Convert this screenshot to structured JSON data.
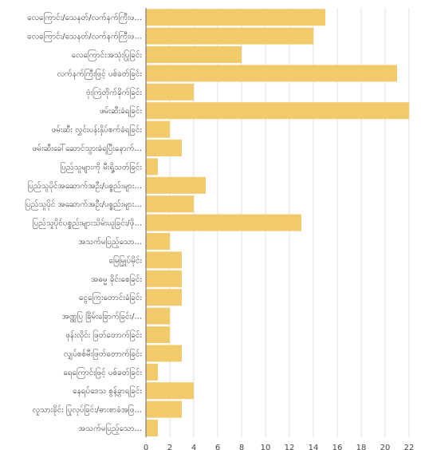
{
  "chart_data": {
    "type": "bar",
    "orientation": "horizontal",
    "categories": [
      "လေကြောင်း/သေနတ်/လက်နက်ကြီးဖ...",
      "လေကြောင်း/သေနတ်/လက်နက်ကြီးဖ...",
      "လေကြောင်းအသုံးပြုခြင်း",
      "လက်နက်ကြီးဖြင့် ပစ်ခတ်ခြင်း",
      "ဗုံးကြဲတိုက်ခိုက်ခြင်း",
      "ဖမ်းဆီးခံရခြင်း",
      "ဖမ်းဆီး လွှင်းပန်းနှိပ်စက်ခံရခြင်း",
      "ဖမ်းဆီးခေါ်ဆောင်သွားခံရပြီးနောက်...",
      "ပြည်သူများကို မီးရှို့သတ်ခြင်း",
      "ပြည်သူပိုင်အဆောက်အဦး/ပစ္စည်းများ...",
      "ပြည်သူပိုင် အဆောက်အဦး/ပစ္စည်းများ...",
      "ပြည်သူပိုင်ပစ္စည်းများသိမ်းယူခြင်း/ဖို...",
      "အသက်မပြည့်သော...",
      "မြေမြှုပ်မိုင်း",
      "အဓမ္မ ခိုင်းစေခြင်း",
      "ငွေကြေးတောင်းခံခြင်း",
      "အဏ္ဏပြ ခြိမ်းခြောက်ခြင်း/...",
      "ဖုန်းလိုင်း ဖြတ်တောက်ခြင်း",
      "လျှပ်စစ်မီးဖြတ်တောက်ခြင်း",
      "ရေကြောင်းဖြင့် ပစ်ခတ်ခြင်း",
      "နေရပ်ဒေသ စွန့်ခွာရခြင်း",
      "လူသားခိုင်း ပြုလုပ်ခြင်း/ဓားစာခံအဖြ...",
      "အသက်မပြည့်သော..."
    ],
    "values": [
      15,
      14,
      8,
      21,
      4,
      22,
      2,
      3,
      1,
      5,
      4,
      13,
      2,
      3,
      3,
      3,
      2,
      2,
      3,
      1,
      4,
      3,
      1
    ],
    "xlim": [
      0,
      22
    ],
    "xticks": [
      0,
      2,
      4,
      6,
      8,
      10,
      12,
      14,
      16,
      18,
      20,
      22
    ],
    "bar_color": "#f1cb6b",
    "grid": true,
    "title": "",
    "xlabel": "",
    "ylabel": ""
  }
}
